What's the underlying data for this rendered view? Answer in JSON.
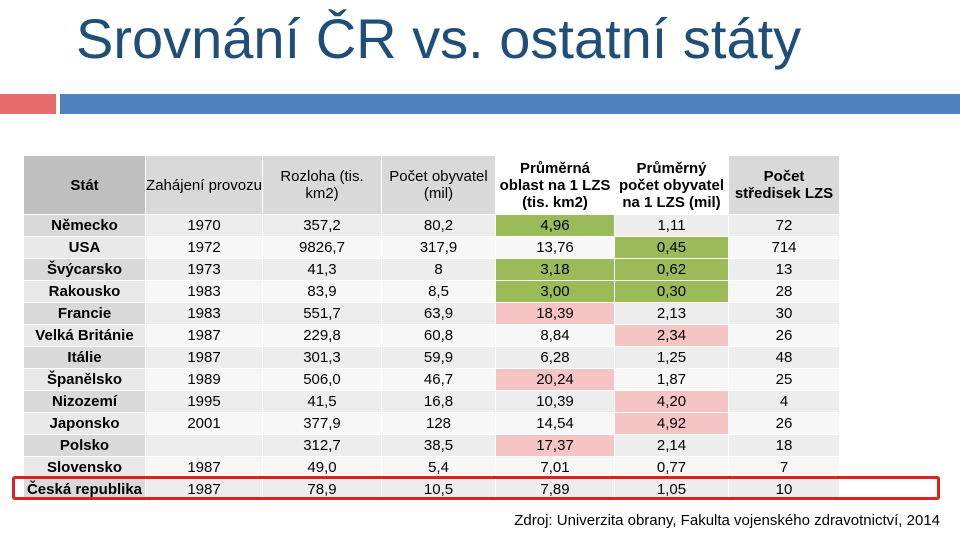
{
  "title": "Srovnání ČR vs. ostatní státy",
  "colors": {
    "title": "#1f4e79",
    "rule_left": "#e46c6c",
    "rule_right": "#4f81bd",
    "green_cell": "#9bbb59",
    "pink_cell": "#f7c4c4",
    "highlight_border": "#e02020"
  },
  "table": {
    "headers": [
      "Stát",
      "Zahájení provozu",
      "Rozloha (tis. km2)",
      "Počet obyvatel (mil)",
      "Průměrná oblast na 1 LZS (tis. km2)",
      "Průměrný počet obyvatel na 1 LZS (mil)",
      "Počet středisek LZS"
    ],
    "rows": [
      {
        "country": "Německo",
        "start": "1970",
        "area": "357,2",
        "population": "80,2",
        "avg_area": "4,96",
        "avg_pop": "1,11",
        "centers": "72",
        "avg_area_hl": "green",
        "avg_pop_hl": ""
      },
      {
        "country": "USA",
        "start": "1972",
        "area": "9826,7",
        "population": "317,9",
        "avg_area": "13,76",
        "avg_pop": "0,45",
        "centers": "714",
        "avg_area_hl": "",
        "avg_pop_hl": "green"
      },
      {
        "country": "Švýcarsko",
        "start": "1973",
        "area": "41,3",
        "population": "8",
        "avg_area": "3,18",
        "avg_pop": "0,62",
        "centers": "13",
        "avg_area_hl": "green",
        "avg_pop_hl": "green"
      },
      {
        "country": "Rakousko",
        "start": "1983",
        "area": "83,9",
        "population": "8,5",
        "avg_area": "3,00",
        "avg_pop": "0,30",
        "centers": "28",
        "avg_area_hl": "green",
        "avg_pop_hl": "green"
      },
      {
        "country": "Francie",
        "start": "1983",
        "area": "551,7",
        "population": "63,9",
        "avg_area": "18,39",
        "avg_pop": "2,13",
        "centers": "30",
        "avg_area_hl": "pink",
        "avg_pop_hl": ""
      },
      {
        "country": "Velká Británie",
        "start": "1987",
        "area": "229,8",
        "population": "60,8",
        "avg_area": "8,84",
        "avg_pop": "2,34",
        "centers": "26",
        "avg_area_hl": "",
        "avg_pop_hl": "pink"
      },
      {
        "country": "Itálie",
        "start": "1987",
        "area": "301,3",
        "population": "59,9",
        "avg_area": "6,28",
        "avg_pop": "1,25",
        "centers": "48",
        "avg_area_hl": "",
        "avg_pop_hl": ""
      },
      {
        "country": "Španělsko",
        "start": "1989",
        "area": "506,0",
        "population": "46,7",
        "avg_area": "20,24",
        "avg_pop": "1,87",
        "centers": "25",
        "avg_area_hl": "pink",
        "avg_pop_hl": ""
      },
      {
        "country": "Nizozemí",
        "start": "1995",
        "area": "41,5",
        "population": "16,8",
        "avg_area": "10,39",
        "avg_pop": "4,20",
        "centers": "4",
        "avg_area_hl": "",
        "avg_pop_hl": "pink"
      },
      {
        "country": "Japonsko",
        "start": "2001",
        "area": "377,9",
        "population": "128",
        "avg_area": "14,54",
        "avg_pop": "4,92",
        "centers": "26",
        "avg_area_hl": "",
        "avg_pop_hl": "pink"
      },
      {
        "country": "Polsko",
        "start": "",
        "area": "312,7",
        "population": "38,5",
        "avg_area": "17,37",
        "avg_pop": "2,14",
        "centers": "18",
        "avg_area_hl": "pink",
        "avg_pop_hl": ""
      },
      {
        "country": "Slovensko",
        "start": "1987",
        "area": "49,0",
        "population": "5,4",
        "avg_area": "7,01",
        "avg_pop": "0,77",
        "centers": "7",
        "avg_area_hl": "",
        "avg_pop_hl": ""
      },
      {
        "country": "Česká republika",
        "start": "1987",
        "area": "78,9",
        "population": "10,5",
        "avg_area": "7,89",
        "avg_pop": "1,05",
        "centers": "10",
        "avg_area_hl": "",
        "avg_pop_hl": ""
      }
    ]
  },
  "source": "Zdroj: Univerzita obrany, Fakulta vojenského zdravotnictví, 2014"
}
